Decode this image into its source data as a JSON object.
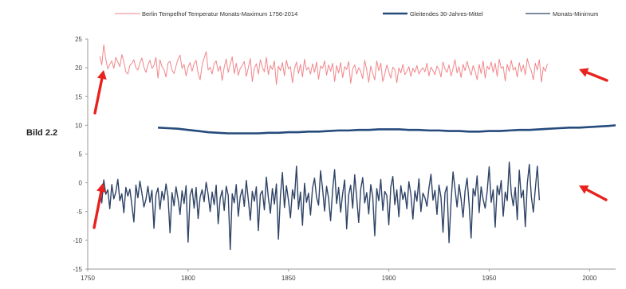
{
  "side_label": "Bild 2.2",
  "colors": {
    "max_series": "#f0868a",
    "mean_series": "#254a7c",
    "min_series": "#2e4366",
    "arrow": "#e8221e",
    "axis": "#9a9a9a"
  },
  "chart_data": {
    "type": "line",
    "title": "",
    "xlabel": "",
    "ylabel": "",
    "xlim": [
      1750,
      2013
    ],
    "ylim": [
      -15,
      25
    ],
    "x_ticks": [
      1750,
      1800,
      1850,
      1900,
      1950,
      2000
    ],
    "y_ticks": [
      -15,
      -10,
      -5,
      0,
      5,
      10,
      15,
      20,
      25
    ],
    "grid": false,
    "legend_position": "top",
    "legend": [
      "Berlin Tempelhof Temperatur Monats-Maximum 1756-2014",
      "Gleitendes 30-Jahres-Mittel",
      "Monats-Minimum"
    ],
    "series": [
      {
        "name": "Berlin Tempelhof Temperatur Monats-Maximum 1756-2014",
        "x_start": 1756,
        "x_step": 1,
        "values": [
          22.0,
          20.5,
          24.0,
          21.5,
          19.8,
          20.6,
          21.2,
          19.9,
          21.8,
          21.0,
          20.2,
          22.3,
          21.1,
          19.3,
          18.9,
          20.4,
          20.8,
          21.4,
          20.0,
          19.6,
          20.9,
          21.7,
          20.1,
          19.2,
          20.5,
          21.3,
          19.9,
          20.4,
          21.8,
          18.2,
          21.4,
          20.2,
          19.7,
          18.4,
          20.8,
          21.1,
          19.6,
          19.0,
          20.3,
          21.5,
          22.2,
          19.9,
          20.6,
          18.6,
          20.1,
          20.9,
          19.4,
          20.7,
          21.3,
          19.0,
          17.9,
          20.5,
          21.7,
          22.8,
          19.6,
          20.1,
          18.9,
          20.7,
          21.2,
          19.4,
          20.3,
          17.8,
          20.1,
          21.5,
          19.2,
          20.6,
          21.9,
          19.0,
          20.8,
          18.7,
          19.9,
          20.4,
          21.1,
          18.5,
          20.0,
          21.6,
          17.6,
          19.9,
          20.7,
          18.9,
          21.4,
          20.1,
          19.3,
          21.8,
          18.8,
          20.4,
          19.7,
          21.2,
          17.1,
          20.3,
          19.5,
          20.9,
          18.6,
          21.3,
          19.8,
          20.2,
          17.4,
          19.8,
          21.0,
          19.0,
          20.6,
          18.4,
          21.5,
          19.6,
          20.1,
          18.9,
          20.7,
          19.2,
          21.0,
          18.0,
          20.3,
          19.9,
          21.2,
          18.7,
          20.5,
          19.4,
          20.8,
          17.6,
          20.4,
          19.1,
          20.9,
          18.3,
          20.2,
          19.7,
          21.1,
          17.3,
          19.8,
          20.5,
          18.9,
          20.0,
          19.4,
          18.1,
          21.3,
          19.6,
          17.5,
          20.3,
          19.0,
          17.9,
          21.2,
          19.5,
          20.8,
          17.6,
          18.9,
          20.5,
          19.3,
          18.2,
          20.1,
          19.7,
          17.4,
          20.0,
          19.1,
          20.6,
          18.8,
          19.4,
          20.2,
          18.5,
          19.9,
          19.2,
          20.4,
          18.9,
          19.6,
          20.0,
          19.3,
          20.8,
          18.6,
          20.1,
          19.5,
          18.8,
          20.3,
          19.7,
          18.4,
          21.0,
          19.8,
          19.2,
          20.5,
          18.6,
          19.9,
          21.4,
          19.1,
          20.2,
          18.3,
          20.6,
          19.5,
          21.1,
          19.8,
          18.7,
          20.4,
          19.4,
          17.9,
          20.6,
          19.0,
          21.2,
          18.2,
          20.3,
          19.7,
          21.0,
          19.2,
          20.8,
          18.5,
          21.5,
          19.9,
          20.2,
          17.7,
          20.6,
          19.4,
          21.3,
          19.6,
          20.1,
          18.4,
          20.9,
          19.3,
          20.5,
          18.8,
          21.6,
          20.3,
          19.5,
          17.9,
          20.8,
          19.6,
          21.4,
          17.5,
          20.1,
          19.4,
          20.7
        ]
      },
      {
        "name": "Gleitendes 30-Jahres-Mittel",
        "x": [
          1785,
          1790,
          1795,
          1800,
          1805,
          1810,
          1815,
          1820,
          1825,
          1830,
          1835,
          1840,
          1845,
          1850,
          1855,
          1860,
          1865,
          1870,
          1875,
          1880,
          1885,
          1890,
          1895,
          1900,
          1905,
          1910,
          1915,
          1920,
          1925,
          1930,
          1935,
          1940,
          1945,
          1950,
          1955,
          1960,
          1965,
          1970,
          1975,
          1980,
          1985,
          1990,
          1995,
          2000,
          2005,
          2010,
          2013
        ],
        "values": [
          9.6,
          9.5,
          9.4,
          9.2,
          9.0,
          8.8,
          8.7,
          8.6,
          8.6,
          8.6,
          8.6,
          8.7,
          8.7,
          8.8,
          8.8,
          8.9,
          8.9,
          9.0,
          9.1,
          9.1,
          9.2,
          9.2,
          9.3,
          9.3,
          9.3,
          9.2,
          9.2,
          9.1,
          9.1,
          9.0,
          9.0,
          8.9,
          8.9,
          9.0,
          9.0,
          9.1,
          9.2,
          9.2,
          9.3,
          9.4,
          9.5,
          9.6,
          9.6,
          9.7,
          9.8,
          9.9,
          10.0
        ]
      },
      {
        "name": "Monats-Minimum",
        "x_start": 1756,
        "x_step": 1,
        "values": [
          -1.0,
          -3.5,
          0.5,
          -2.0,
          -1.2,
          -4.5,
          -0.3,
          -2.8,
          -1.6,
          0.6,
          -3.1,
          -1.9,
          -5.2,
          -0.8,
          -2.3,
          -1.1,
          -3.9,
          -6.8,
          -0.4,
          -2.6,
          0.3,
          -1.8,
          -4.2,
          -2.9,
          -0.6,
          -3.4,
          -1.3,
          -7.9,
          -2.1,
          -0.9,
          -4.6,
          -1.5,
          -3.0,
          -0.2,
          -2.4,
          -8.7,
          -1.7,
          -4.0,
          -0.7,
          -2.8,
          -5.5,
          -1.4,
          -3.6,
          -0.5,
          -10.3,
          -2.2,
          -1.0,
          -4.4,
          -0.8,
          -6.2,
          -2.5,
          -1.2,
          -3.3,
          0.1,
          -2.0,
          -5.0,
          -1.6,
          -3.8,
          -0.4,
          -7.1,
          -2.7,
          -1.3,
          -4.8,
          -0.6,
          -2.2,
          -11.6,
          -1.9,
          -3.5,
          -0.3,
          -5.8,
          -2.4,
          -1.1,
          -4.1,
          0.4,
          -2.9,
          -6.5,
          -1.5,
          -3.2,
          -0.7,
          -8.3,
          -2.0,
          -1.4,
          -4.7,
          1.0,
          -2.6,
          -5.3,
          -1.0,
          -3.7,
          -0.2,
          -9.8,
          -2.3,
          1.8,
          -4.3,
          -0.5,
          -3.0,
          -6.1,
          -1.2,
          -2.8,
          2.9,
          -4.6,
          -1.6,
          -7.4,
          -0.1,
          -3.4,
          -1.8,
          -5.6,
          -0.9,
          0.8,
          -2.5,
          -3.9,
          2.1,
          -1.0,
          -4.9,
          -0.6,
          -2.7,
          -6.6,
          -1.3,
          2.3,
          -3.6,
          -0.8,
          -5.1,
          -1.9,
          0.5,
          -8.0,
          -2.1,
          -0.4,
          -4.4,
          1.4,
          -2.6,
          -6.9,
          -1.1,
          0.9,
          -3.5,
          -1.7,
          -5.4,
          -0.3,
          -2.4,
          -9.2,
          -1.0,
          -3.1,
          0.6,
          -4.8,
          -1.5,
          -2.2,
          -7.3,
          -0.7,
          1.1,
          -3.8,
          -1.2,
          -5.9,
          -0.5,
          -2.9,
          -1.6,
          -4.5,
          0.2,
          -2.0,
          -6.3,
          -1.4,
          -3.2,
          0.7,
          -5.0,
          -1.8,
          -2.6,
          -4.1,
          -0.9,
          1.5,
          -3.0,
          -1.3,
          -5.5,
          -0.4,
          -2.5,
          -8.6,
          -1.7,
          -0.6,
          -10.4,
          -3.3,
          1.9,
          -1.1,
          -4.2,
          -0.3,
          -2.8,
          -6.0,
          -1.4,
          0.8,
          -3.7,
          -9.6,
          -1.0,
          -2.3,
          1.2,
          -5.2,
          -0.7,
          -2.9,
          -4.4,
          -1.5,
          2.8,
          -3.4,
          -1.2,
          -7.7,
          -0.5,
          -2.1,
          0.4,
          -5.8,
          -1.6,
          -3.1,
          3.6,
          -1.8,
          -4.0,
          -0.8,
          -6.4,
          2.2,
          -2.6,
          -1.3,
          -7.6,
          -0.1,
          3.2,
          -2.4,
          -5.1,
          -1.0,
          2.9,
          -3.0
        ]
      }
    ]
  }
}
